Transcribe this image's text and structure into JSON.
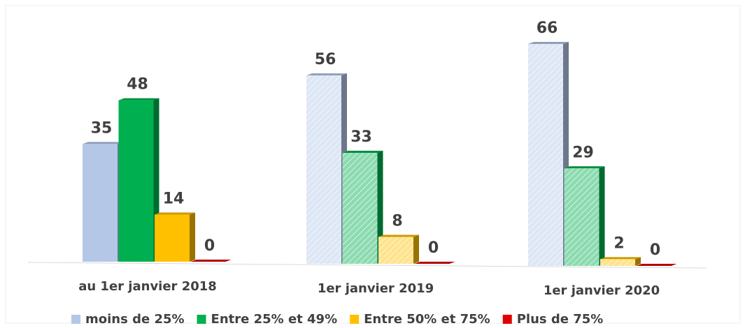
{
  "chart_data": {
    "type": "bar",
    "categories": [
      "au 1er janvier 2018",
      "1er janvier 2019",
      "1er janvier 2020"
    ],
    "series": [
      {
        "name": "moins de 25%",
        "color": "#b4c7e7",
        "values": [
          35,
          56,
          66
        ]
      },
      {
        "name": "Entre 25% et 49%",
        "color": "#00b050",
        "values": [
          48,
          33,
          29
        ]
      },
      {
        "name": "Entre 50% et 75%",
        "color": "#ffc000",
        "values": [
          14,
          8,
          2
        ]
      },
      {
        "name": "Plus de 75%",
        "color": "#e00000",
        "values": [
          0,
          0,
          0
        ]
      }
    ],
    "legend": "bottom"
  }
}
